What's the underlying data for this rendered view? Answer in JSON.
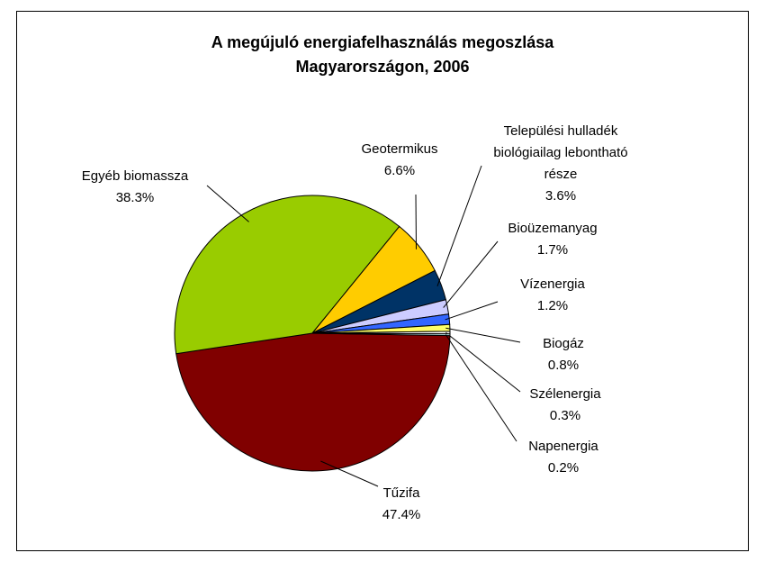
{
  "chart_data": {
    "type": "pie",
    "title": "A megújuló energiafelhasználás megoszlása Magyarországon, 2006",
    "categories": [
      "Tűzifa",
      "Egyéb biomassza",
      "Geotermikus",
      "Települési hulladék biológiailag lebontható része",
      "Bioüzemanyag",
      "Vízenergia",
      "Biogáz",
      "Szélenergia",
      "Napenergia"
    ],
    "values": [
      47.4,
      38.3,
      6.6,
      3.6,
      1.7,
      1.2,
      0.8,
      0.3,
      0.2
    ],
    "value_labels": [
      "47.4%",
      "38.3%",
      "6.6%",
      "3.6%",
      "1.7%",
      "1.2%",
      "0.8%",
      "0.3%",
      "0.2%"
    ],
    "colors": [
      "#800000",
      "#99cc00",
      "#ffcc00",
      "#003366",
      "#ccccff",
      "#3366ff",
      "#ffff66",
      "#ffffff",
      "#ccffff"
    ]
  }
}
